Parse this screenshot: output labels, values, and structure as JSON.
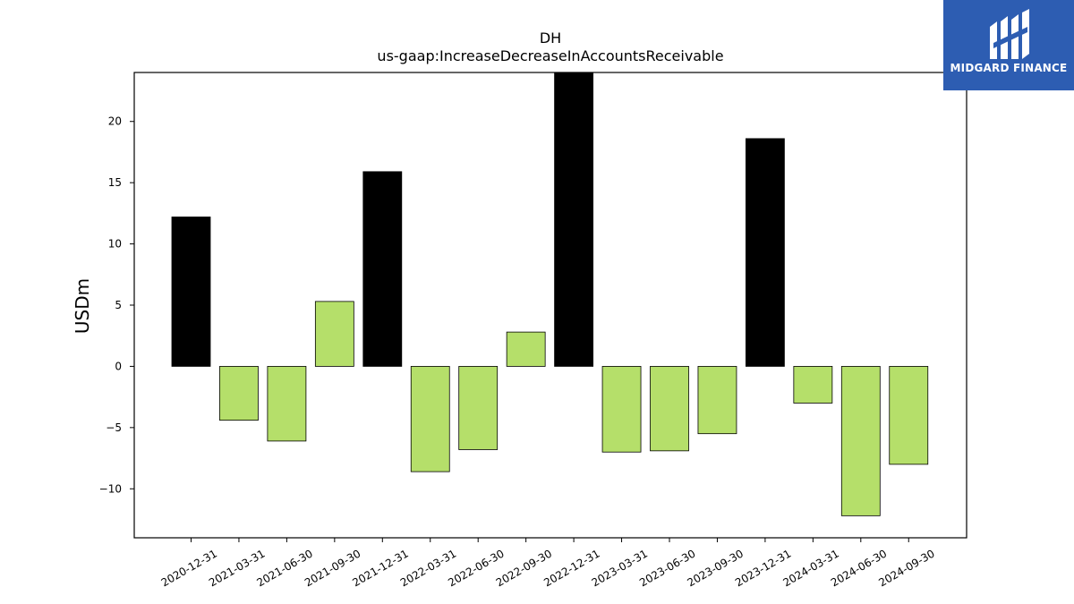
{
  "chart_data": {
    "type": "bar",
    "title": "DH",
    "subtitle": "us-gaap:IncreaseDecreaseInAccountsReceivable",
    "xlabel": "",
    "ylabel": "USDm",
    "ylim": [
      -14,
      24
    ],
    "yticks": [
      -10,
      -5,
      0,
      5,
      10,
      15,
      20
    ],
    "grid": false,
    "categories": [
      "2020-12-31",
      "2021-03-31",
      "2021-06-30",
      "2021-09-30",
      "2021-12-31",
      "2022-03-31",
      "2022-06-30",
      "2022-09-30",
      "2022-12-31",
      "2023-03-31",
      "2023-06-30",
      "2023-09-30",
      "2023-12-31",
      "2024-03-31",
      "2024-06-30",
      "2024-09-30"
    ],
    "values": [
      12.2,
      -4.4,
      -6.1,
      5.3,
      15.9,
      -8.6,
      -6.8,
      2.8,
      24.0,
      -7.0,
      -6.9,
      -5.5,
      18.6,
      -3.0,
      -12.2,
      -8.0
    ],
    "bar_colors": [
      "#000000",
      "#b5df6a",
      "#b5df6a",
      "#b5df6a",
      "#000000",
      "#b5df6a",
      "#b5df6a",
      "#b5df6a",
      "#000000",
      "#b5df6a",
      "#b5df6a",
      "#b5df6a",
      "#000000",
      "#b5df6a",
      "#b5df6a",
      "#b5df6a"
    ]
  },
  "logo": {
    "text": "MIDGARD FINANCE",
    "color": "#2d5db2",
    "icon": "midgard-logo-icon"
  }
}
